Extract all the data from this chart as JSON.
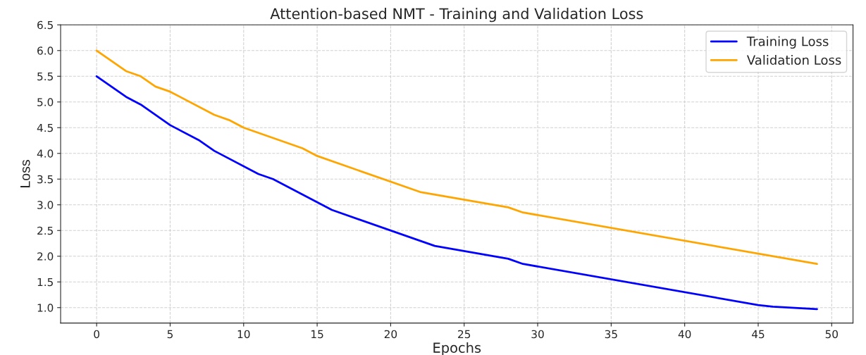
{
  "chart_data": {
    "type": "line",
    "title": "Attention-based NMT - Training and Validation Loss",
    "xlabel": "Epochs",
    "ylabel": "Loss",
    "series": [
      {
        "name": "Training Loss",
        "color": "#0000ff",
        "x": [
          0,
          2,
          3,
          5,
          7,
          8,
          11,
          12,
          16,
          23,
          28,
          29,
          45,
          46,
          49
        ],
        "values": [
          5.5,
          5.1,
          4.95,
          4.55,
          4.25,
          4.05,
          3.6,
          3.5,
          2.9,
          2.2,
          1.95,
          1.85,
          1.05,
          1.02,
          0.97
        ]
      },
      {
        "name": "Validation Loss",
        "color": "#ffa500",
        "x": [
          0,
          2,
          3,
          4,
          5,
          8,
          9,
          10,
          14,
          15,
          22,
          28,
          29,
          49
        ],
        "values": [
          6.0,
          5.6,
          5.5,
          5.3,
          5.2,
          4.75,
          4.65,
          4.5,
          4.1,
          3.95,
          3.25,
          2.95,
          2.85,
          1.85
        ]
      }
    ],
    "xlim": [
      -2.45,
      51.45
    ],
    "xticks": [
      0,
      5,
      10,
      15,
      20,
      25,
      30,
      35,
      40,
      45,
      50
    ],
    "ylim": [
      0.7,
      6.5
    ],
    "yticks": [
      {
        "value": 1,
        "label": "1.0"
      },
      1.5,
      {
        "value": 2,
        "label": "2.0"
      },
      2.5,
      {
        "value": 3,
        "label": "3.0"
      },
      3.5,
      {
        "value": 4,
        "label": "4.0"
      },
      4.5,
      {
        "value": 5,
        "label": "5.0"
      },
      5.5,
      {
        "value": 6,
        "label": "6.0"
      },
      6.5
    ],
    "grid": true,
    "legend": "top right",
    "line_style": "solid"
  }
}
